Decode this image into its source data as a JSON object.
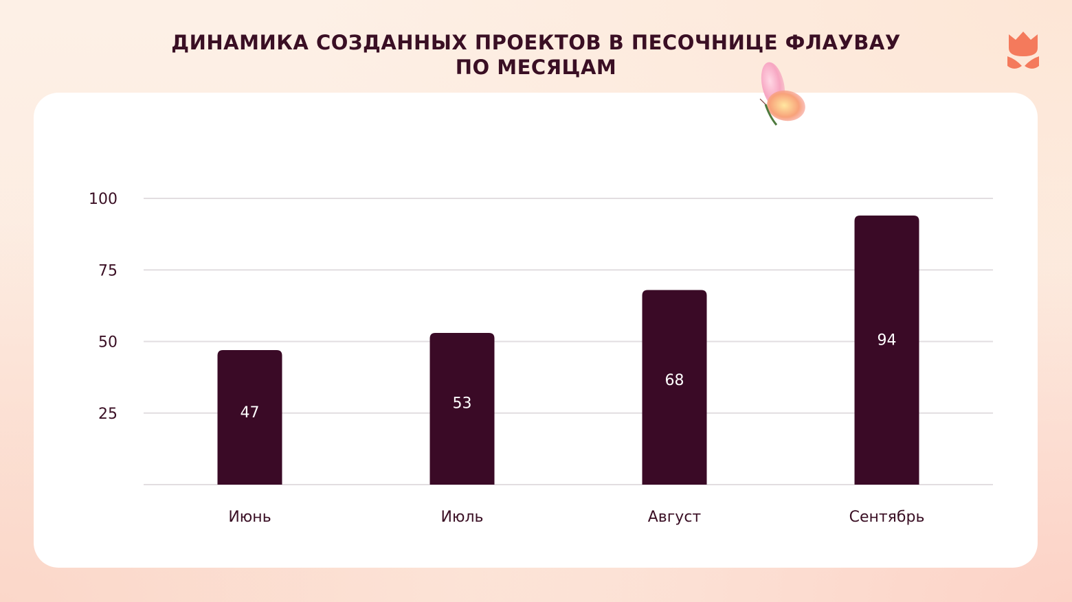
{
  "title": {
    "line1": "ДИНАМИКА СОЗДАННЫХ ПРОЕКТОВ В ПЕСОЧНИЦЕ ФЛАУВАУ",
    "line2": "ПО МЕСЯЦАМ"
  },
  "colors": {
    "bar": "#3a0a26",
    "text": "#3a0f24",
    "grid": "#e2dde0",
    "logo": "#f47a5c"
  },
  "icons": [
    "tulip-logo-icon",
    "butterfly-icon"
  ],
  "chart_data": {
    "type": "bar",
    "categories": [
      "Июнь",
      "Июль",
      "Август",
      "Сентябрь"
    ],
    "values": [
      47,
      53,
      68,
      94
    ],
    "data_labels": [
      "47",
      "53",
      "68",
      "94"
    ],
    "title": "ДИНАМИКА СОЗДАННЫХ ПРОЕКТОВ В ПЕСОЧНИЦЕ ФЛАУВАУ ПО МЕСЯЦАМ",
    "xlabel": "",
    "ylabel": "",
    "yticks": [
      25,
      50,
      75,
      100
    ],
    "ylim": [
      0,
      100
    ],
    "grid": true,
    "legend": "none"
  }
}
